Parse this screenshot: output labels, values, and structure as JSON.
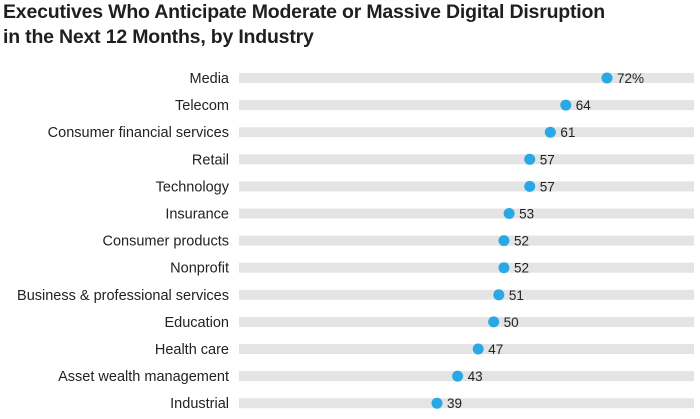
{
  "chart_data": {
    "type": "dot",
    "title_line1": "Executives Who Anticipate Moderate or Massive Digital Disruption",
    "title_line2": "in the Next 12 Months, by Industry",
    "categories": [
      "Media",
      "Telecom",
      "Consumer financial services",
      "Retail",
      "Technology",
      "Insurance",
      "Consumer products",
      "Nonprofit",
      "Business & professional services",
      "Education",
      "Health care",
      "Asset wealth management",
      "Industrial"
    ],
    "values": [
      72,
      64,
      61,
      57,
      57,
      53,
      52,
      52,
      51,
      50,
      47,
      43,
      39
    ],
    "value_labels": [
      "72%",
      "64",
      "61",
      "57",
      "57",
      "53",
      "52",
      "52",
      "51",
      "50",
      "47",
      "43",
      "39"
    ],
    "xlim": [
      0,
      100
    ],
    "colors": {
      "dot": "#2aa8e6",
      "track": "#e4e4e4",
      "text": "#222222"
    }
  }
}
